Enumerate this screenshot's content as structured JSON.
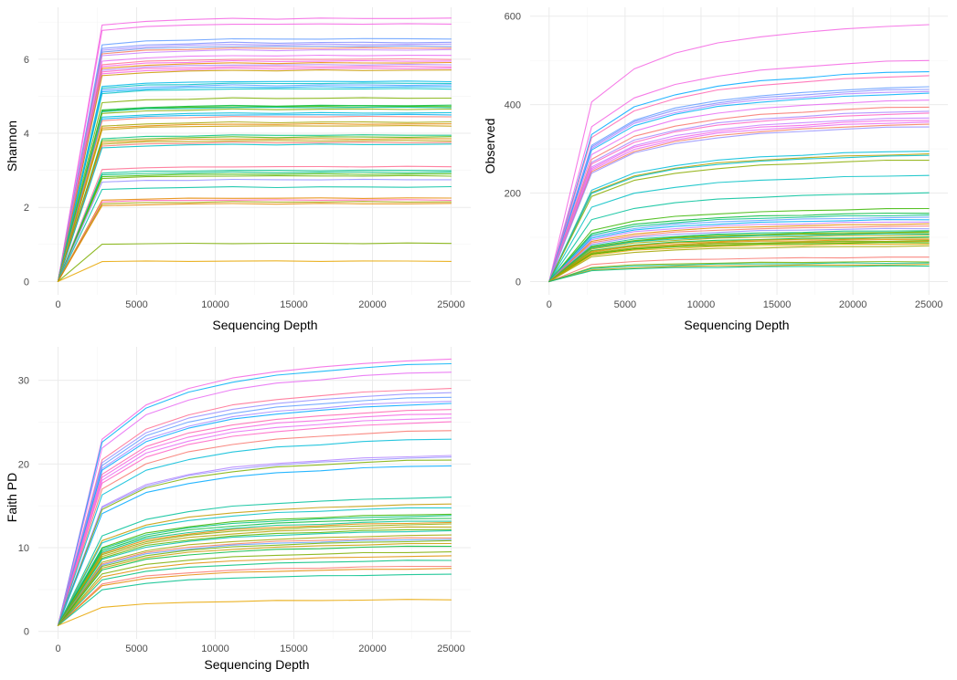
{
  "chart_data": [
    {
      "type": "line",
      "xlabel": "Sequencing Depth",
      "ylabel": "Shannon",
      "xlim": [
        0,
        25000
      ],
      "ylim": [
        0,
        7.2
      ],
      "xticks": [
        0,
        5000,
        10000,
        15000,
        20000,
        25000
      ],
      "yticks": [
        0,
        2,
        4,
        6
      ],
      "grid": true,
      "legend": "none",
      "x": [
        0,
        2800,
        5600,
        8300,
        11100,
        13900,
        16700,
        19400,
        22200,
        25000
      ],
      "plateaus": [
        7.1,
        6.95,
        6.55,
        6.45,
        6.4,
        6.35,
        6.3,
        6.25,
        6.1,
        6.0,
        5.95,
        5.9,
        5.85,
        5.8,
        5.75,
        5.7,
        5.4,
        5.35,
        5.3,
        5.25,
        5.2,
        4.95,
        4.75,
        4.72,
        4.7,
        4.65,
        4.55,
        4.5,
        4.45,
        4.3,
        4.25,
        4.2,
        3.95,
        3.9,
        3.85,
        3.8,
        3.75,
        3.7,
        3.1,
        3.0,
        2.95,
        2.9,
        2.85,
        2.75,
        2.55,
        2.25,
        2.2,
        2.15,
        2.1,
        1.03,
        0.55
      ],
      "colors": [
        "#F564E3",
        "#F564E3",
        "#619CFF",
        "#7C8EFF",
        "#A58AFF",
        "#6C8FE8",
        "#F37B59",
        "#C77CFF",
        "#E76BF3",
        "#FF6C91",
        "#F564E3",
        "#E58700",
        "#B385FF",
        "#FF61C3",
        "#F564E3",
        "#C99800",
        "#00B8E7",
        "#00BFC4",
        "#529EFF",
        "#00A9FF",
        "#00BFC4",
        "#7CAE00",
        "#00BA38",
        "#39B600",
        "#00C19A",
        "#7CAE00",
        "#00BCD8",
        "#00B0F6",
        "#F8766D",
        "#A3A500",
        "#E58700",
        "#C49A00",
        "#00BF7D",
        "#53B400",
        "#DE8C00",
        "#B79F00",
        "#F8766D",
        "#00BFC4",
        "#FF6C91",
        "#00C08B",
        "#00BF7D",
        "#39B600",
        "#6BB100",
        "#9590FF",
        "#00C1A3",
        "#E58700",
        "#FF64B0",
        "#A3A500",
        "#E58700",
        "#7CAE00",
        "#E7A600"
      ]
    },
    {
      "type": "line",
      "xlabel": "Sequencing Depth",
      "ylabel": "Observed",
      "xlim": [
        0,
        25000
      ],
      "ylim": [
        0,
        600
      ],
      "xticks": [
        0,
        5000,
        10000,
        15000,
        20000,
        25000
      ],
      "yticks": [
        0,
        200,
        400,
        600
      ],
      "grid": true,
      "legend": "none",
      "x": [
        0,
        2800,
        5600,
        8300,
        11100,
        13900,
        16700,
        19400,
        22200,
        25000
      ],
      "plateaus": [
        580,
        500,
        475,
        465,
        440,
        435,
        430,
        425,
        410,
        395,
        385,
        380,
        370,
        365,
        360,
        355,
        350,
        295,
        288,
        285,
        275,
        240,
        200,
        165,
        155,
        150,
        145,
        140,
        135,
        130,
        125,
        120,
        115,
        112,
        110,
        108,
        105,
        100,
        98,
        95,
        92,
        90,
        88,
        85,
        80,
        55,
        45,
        42,
        38,
        35
      ],
      "colors": [
        "#F564E3",
        "#F564E3",
        "#00A9FF",
        "#FF64B0",
        "#619CFF",
        "#7C8EFF",
        "#B385FF",
        "#00B0F6",
        "#E76BF3",
        "#F8766D",
        "#A58AFF",
        "#FF61C3",
        "#C77CFF",
        "#F564E3",
        "#E76BF3",
        "#F37B59",
        "#9590FF",
        "#00BCD8",
        "#B79F00",
        "#00BFC4",
        "#8AAB00",
        "#00BFC4",
        "#00C19A",
        "#39B600",
        "#00BA38",
        "#00C08B",
        "#619CFF",
        "#00B0F6",
        "#C77CFF",
        "#E58700",
        "#F8766D",
        "#9590FF",
        "#00BF7D",
        "#53B400",
        "#7CAE00",
        "#00C1A3",
        "#A3A500",
        "#00BA38",
        "#C49A00",
        "#DE8C00",
        "#6BB100",
        "#B79F00",
        "#39B600",
        "#E7A600",
        "#A3A500",
        "#F8766D",
        "#7CAE00",
        "#00C08B",
        "#C99800",
        "#00BF7D"
      ]
    },
    {
      "type": "line",
      "xlabel": "Sequencing Depth",
      "ylabel": "Faith PD",
      "xlim": [
        0,
        25000
      ],
      "ylim": [
        0,
        33
      ],
      "xticks": [
        0,
        5000,
        10000,
        15000,
        20000,
        25000
      ],
      "yticks": [
        0,
        10,
        20,
        30
      ],
      "grid": true,
      "legend": "none",
      "x": [
        0,
        2800,
        5600,
        8300,
        11100,
        13900,
        16700,
        19400,
        22200,
        25000
      ],
      "plateaus": [
        32.5,
        32.0,
        31.0,
        29.0,
        28.5,
        28.0,
        27.5,
        27.2,
        26.5,
        26.0,
        25.5,
        25.0,
        24.0,
        23.0,
        21.0,
        20.8,
        20.5,
        19.8,
        16.0,
        15.2,
        14.8,
        14.0,
        13.8,
        13.5,
        13.2,
        13.0,
        12.8,
        12.5,
        12.2,
        12.0,
        11.5,
        11.2,
        11.0,
        10.8,
        10.5,
        10.2,
        9.5,
        9.0,
        8.5,
        7.8,
        7.5,
        6.8,
        3.8
      ],
      "colors": [
        "#F564E3",
        "#00B0F6",
        "#E76BF3",
        "#FF6C91",
        "#9590FF",
        "#619CFF",
        "#A58AFF",
        "#00A9FF",
        "#FF64B0",
        "#F564E3",
        "#E76BF3",
        "#FF61C3",
        "#F8766D",
        "#00BCD8",
        "#B385FF",
        "#9590FF",
        "#7CAE00",
        "#00A9FF",
        "#00C19A",
        "#C49A00",
        "#00BFC4",
        "#39B600",
        "#00BF7D",
        "#00BA38",
        "#00C08B",
        "#E58700",
        "#8AAB00",
        "#B79F00",
        "#53B400",
        "#00C1A3",
        "#A3A500",
        "#F37B59",
        "#619CFF",
        "#6BB100",
        "#C99800",
        "#00BA38",
        "#7CAE00",
        "#DE8C00",
        "#00BF7D",
        "#F8766D",
        "#E58700",
        "#00C08B",
        "#E7A600"
      ]
    }
  ]
}
